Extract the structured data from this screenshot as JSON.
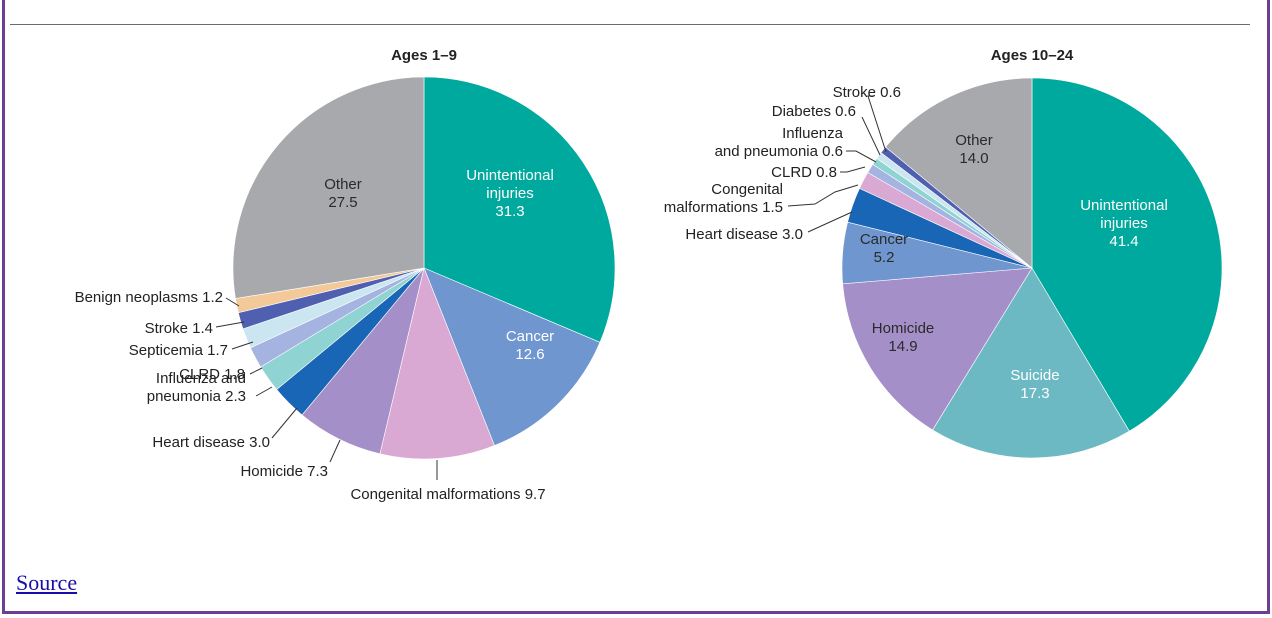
{
  "source_link": "Source",
  "chart_data": [
    {
      "type": "pie",
      "title": "Ages 1–9",
      "slices": [
        {
          "label": "Unintentional injuries",
          "value": 31.3,
          "color": "#00a99d",
          "text": [
            "Unintentional",
            "injuries",
            "31.3"
          ],
          "text_fill": "#ffffff"
        },
        {
          "label": "Cancer",
          "value": 12.6,
          "color": "#6f96cf",
          "text": [
            "Cancer",
            "12.6"
          ],
          "text_fill": "#ffffff"
        },
        {
          "label": "Congenital malformations",
          "value": 9.7,
          "color": "#d9a8d3",
          "text": [
            "Congenital malformations 9.7"
          ]
        },
        {
          "label": "Homicide",
          "value": 7.3,
          "color": "#a58fc8",
          "text": [
            "Homicide 7.3"
          ]
        },
        {
          "label": "Heart disease",
          "value": 3.0,
          "color": "#1a66b6",
          "text": [
            "Heart disease 3.0"
          ]
        },
        {
          "label": "Influenza and pneumonia",
          "value": 2.3,
          "color": "#8fd3d3",
          "text": [
            "Influenza and",
            "pneumonia 2.3"
          ]
        },
        {
          "label": "CLRD",
          "value": 1.8,
          "color": "#a4b3df",
          "text": [
            "CLRD 1.8"
          ]
        },
        {
          "label": "Septicemia",
          "value": 1.7,
          "color": "#cbe6f1",
          "text": [
            "Septicemia 1.7"
          ]
        },
        {
          "label": "Stroke",
          "value": 1.4,
          "color": "#4f60b0",
          "text": [
            "Stroke 1.4"
          ]
        },
        {
          "label": "Benign neoplasms",
          "value": 1.2,
          "color": "#f3c99a",
          "text": [
            "Benign neoplasms 1.2"
          ]
        },
        {
          "label": "Other",
          "value": 27.5,
          "color": "#a7a9ac",
          "text": [
            "Other",
            "27.5"
          ]
        }
      ]
    },
    {
      "type": "pie",
      "title": "Ages 10–24",
      "slices": [
        {
          "label": "Unintentional injuries",
          "value": 41.4,
          "color": "#00a99d",
          "text": [
            "Unintentional",
            "injuries",
            "41.4"
          ],
          "text_fill": "#ffffff"
        },
        {
          "label": "Suicide",
          "value": 17.3,
          "color": "#6cb9c4",
          "text": [
            "Suicide",
            "17.3"
          ],
          "text_fill": "#ffffff"
        },
        {
          "label": "Homicide",
          "value": 14.9,
          "color": "#a58fc8",
          "text": [
            "Homicide",
            "14.9"
          ]
        },
        {
          "label": "Cancer",
          "value": 5.2,
          "color": "#6f96cf",
          "text": [
            "Cancer",
            "5.2"
          ]
        },
        {
          "label": "Heart disease",
          "value": 3.0,
          "color": "#1a66b6",
          "text": [
            "Heart disease 3.0"
          ]
        },
        {
          "label": "Congenital malformations",
          "value": 1.5,
          "color": "#d9a8d3",
          "text": [
            "Congenital",
            "malformations 1.5"
          ]
        },
        {
          "label": "CLRD",
          "value": 0.8,
          "color": "#a4b3df",
          "text": [
            "CLRD 0.8"
          ]
        },
        {
          "label": "Influenza and pneumonia",
          "value": 0.6,
          "color": "#8fd3d3",
          "text": [
            "Influenza",
            "and pneumonia 0.6"
          ]
        },
        {
          "label": "Diabetes",
          "value": 0.6,
          "color": "#cbe6f1",
          "text": [
            "Diabetes 0.6"
          ]
        },
        {
          "label": "Stroke",
          "value": 0.6,
          "color": "#4f60b0",
          "text": [
            "Stroke 0.6"
          ]
        },
        {
          "label": "Other",
          "value": 14.0,
          "color": "#a7a9ac",
          "text": [
            "Other",
            "14.0"
          ]
        }
      ]
    }
  ]
}
